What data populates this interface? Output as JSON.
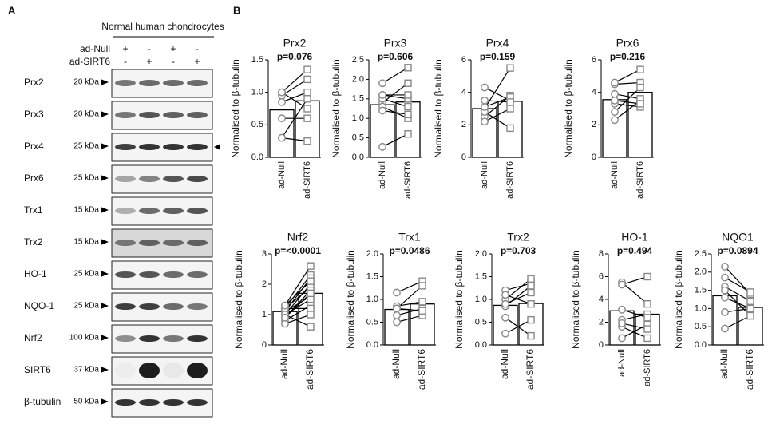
{
  "panel_a": {
    "label": "A",
    "title": "Normal human chondrocytes",
    "conditions": [
      {
        "name": "ad-Null",
        "signs": [
          "+",
          "-",
          "+",
          "-"
        ]
      },
      {
        "name": "ad-SIRT6",
        "signs": [
          "-",
          "+",
          "-",
          "+"
        ]
      }
    ],
    "blots": [
      {
        "name": "Prx2",
        "kda": "20 kDa"
      },
      {
        "name": "Prx3",
        "kda": "20 kDa"
      },
      {
        "name": "Prx4",
        "kda": "25 kDa"
      },
      {
        "name": "Prx6",
        "kda": "25 kDa"
      },
      {
        "name": "Trx1",
        "kda": "15 kDa"
      },
      {
        "name": "Trx2",
        "kda": "15 kDa"
      },
      {
        "name": "HO-1",
        "kda": "25 kDa"
      },
      {
        "name": "NQO-1",
        "kda": "25 kDa"
      },
      {
        "name": "Nrf2",
        "kda": "100 kDa"
      },
      {
        "name": "SIRT6",
        "kda": "37 kDa"
      },
      {
        "name": "β-tubulin",
        "kda": "50 kDa"
      }
    ]
  },
  "panel_b_label": "B",
  "chart_data": [
    {
      "type": "paired-bar",
      "title": "Prx2",
      "annotation": "p=0.076",
      "ylabel": "Normalised to β-tubulin",
      "categories": [
        "ad-Null",
        "ad-SIRT6"
      ],
      "values": [
        0.73,
        0.87
      ],
      "pairs": [
        [
          0.3,
          0.25
        ],
        [
          1.0,
          1.35
        ],
        [
          0.95,
          1.2
        ],
        [
          0.85,
          1.0
        ],
        [
          0.6,
          0.6
        ],
        [
          1.0,
          0.75
        ],
        [
          0.3,
          0.9
        ]
      ],
      "ylim": [
        0,
        1.5
      ],
      "yticks": [
        {
          "value": 0,
          "label": "0.0"
        },
        0.5,
        {
          "value": 1,
          "label": "1.0"
        },
        1.5
      ]
    },
    {
      "type": "paired-bar",
      "title": "Prx3",
      "annotation": "p=0.606",
      "ylabel": "Normalised to β-tubulin",
      "categories": [
        "ad-Null",
        "ad-SIRT6"
      ],
      "values": [
        1.35,
        1.42
      ],
      "pairs": [
        [
          0.27,
          0.6
        ],
        [
          1.9,
          2.3
        ],
        [
          1.6,
          1.5
        ],
        [
          1.4,
          1.9
        ],
        [
          1.3,
          1.0
        ],
        [
          1.5,
          1.3
        ],
        [
          1.6,
          1.6
        ],
        [
          1.2,
          1.1
        ]
      ],
      "ylim": [
        0,
        2.5
      ],
      "yticks": [
        {
          "value": 0,
          "label": "0.0"
        },
        0.5,
        {
          "value": 1,
          "label": "1.0"
        },
        1.5,
        {
          "value": 2,
          "label": "2.0"
        },
        2.5
      ]
    },
    {
      "type": "paired-bar",
      "title": "Prx4",
      "annotation": "p=0.159",
      "ylabel": "Normalised to β-tubulin",
      "categories": [
        "ad-Null",
        "ad-SIRT6"
      ],
      "values": [
        3.0,
        3.45
      ],
      "pairs": [
        [
          4.3,
          3.5
        ],
        [
          3.0,
          5.5
        ],
        [
          2.5,
          3.8
        ],
        [
          2.2,
          3.0
        ],
        [
          2.8,
          1.8
        ],
        [
          3.1,
          3.7
        ],
        [
          3.5,
          3.4
        ]
      ],
      "ylim": [
        0,
        6
      ],
      "yticks": [
        0,
        2,
        4,
        6
      ]
    },
    {
      "type": "paired-bar",
      "title": "Prx6",
      "annotation": "p=0.216",
      "ylabel": "Normalised to β-tubulin",
      "categories": [
        "ad-Null",
        "ad-SIRT6"
      ],
      "values": [
        3.55,
        4.0
      ],
      "pairs": [
        [
          2.3,
          3.5
        ],
        [
          4.5,
          4.6
        ],
        [
          4.6,
          5.4
        ],
        [
          3.3,
          3.1
        ],
        [
          2.8,
          4.3
        ],
        [
          3.9,
          3.6
        ],
        [
          3.5,
          3.3
        ]
      ],
      "ylim": [
        0,
        6
      ],
      "yticks": [
        0,
        2,
        4,
        6
      ]
    },
    {
      "type": "paired-bar",
      "title": "Nrf2",
      "annotation": "p=<0.0001",
      "ylabel": "Normalised to β-tubulin",
      "categories": [
        "ad-Null",
        "ad-SIRT6"
      ],
      "values": [
        1.1,
        1.7
      ],
      "pairs": [
        [
          1.3,
          2.6
        ],
        [
          1.2,
          2.3
        ],
        [
          1.1,
          2.2
        ],
        [
          1.0,
          2.0
        ],
        [
          1.2,
          1.9
        ],
        [
          0.9,
          1.8
        ],
        [
          1.1,
          1.6
        ],
        [
          1.0,
          1.5
        ],
        [
          0.8,
          1.3
        ],
        [
          1.2,
          1.2
        ],
        [
          0.7,
          1.0
        ],
        [
          1.0,
          0.6
        ],
        [
          1.3,
          2.1
        ],
        [
          0.9,
          1.7
        ]
      ],
      "ylim": [
        0,
        3
      ],
      "yticks": [
        0,
        1,
        2,
        3
      ]
    },
    {
      "type": "paired-bar",
      "title": "Trx1",
      "annotation": "p=0.0486",
      "ylabel": "Normalised to β-tubulin",
      "categories": [
        "ad-Null",
        "ad-SIRT6"
      ],
      "values": [
        0.78,
        0.9
      ],
      "pairs": [
        [
          1.15,
          1.4
        ],
        [
          0.85,
          0.95
        ],
        [
          0.65,
          0.8
        ],
        [
          0.5,
          0.65
        ],
        [
          0.8,
          1.3
        ],
        [
          0.8,
          0.75
        ]
      ],
      "ylim": [
        0,
        2
      ],
      "yticks": [
        {
          "value": 0,
          "label": "0.0"
        },
        0.5,
        {
          "value": 1,
          "label": "1.0"
        },
        1.5,
        {
          "value": 2,
          "label": "2.0"
        }
      ]
    },
    {
      "type": "paired-bar",
      "title": "Trx2",
      "annotation": "p=0.703",
      "ylabel": "Normalised to β-tubulin",
      "categories": [
        "ad-Null",
        "ad-SIRT6"
      ],
      "values": [
        0.87,
        0.91
      ],
      "pairs": [
        [
          1.2,
          1.35
        ],
        [
          1.0,
          1.45
        ],
        [
          0.85,
          1.3
        ],
        [
          0.6,
          0.2
        ],
        [
          0.25,
          0.55
        ],
        [
          1.1,
          0.9
        ],
        [
          0.9,
          1.15
        ]
      ],
      "ylim": [
        0,
        2
      ],
      "yticks": [
        {
          "value": 0,
          "label": "0.0"
        },
        0.5,
        {
          "value": 1,
          "label": "1.0"
        },
        1.5,
        {
          "value": 2,
          "label": "2.0"
        }
      ]
    },
    {
      "type": "paired-bar",
      "title": "HO-1",
      "annotation": "p=0.494",
      "ylabel": "Normalised to β-tubulin",
      "categories": [
        "ad-Null",
        "ad-SIRT6"
      ],
      "values": [
        3.0,
        2.7
      ],
      "pairs": [
        [
          5.5,
          3.6
        ],
        [
          5.3,
          6.0
        ],
        [
          2.2,
          2.7
        ],
        [
          1.6,
          0.6
        ],
        [
          0.6,
          1.8
        ],
        [
          3.1,
          2.4
        ],
        [
          1.9,
          1.4
        ]
      ],
      "ylim": [
        0,
        8
      ],
      "yticks": [
        0,
        2,
        4,
        6,
        8
      ]
    },
    {
      "type": "paired-bar",
      "title": "NQO1",
      "annotation": "p=0.0894",
      "ylabel": "Normalised to β-tubulin",
      "categories": [
        "ad-Null",
        "ad-SIRT6"
      ],
      "values": [
        1.35,
        1.03
      ],
      "pairs": [
        [
          2.15,
          1.4
        ],
        [
          1.85,
          1.45
        ],
        [
          1.6,
          1.2
        ],
        [
          1.5,
          0.8
        ],
        [
          1.3,
          1.0
        ],
        [
          0.9,
          1.0
        ],
        [
          0.45,
          0.8
        ]
      ],
      "ylim": [
        0,
        2.5
      ],
      "yticks": [
        {
          "value": 0,
          "label": "0.0"
        },
        0.5,
        {
          "value": 1,
          "label": "1.0"
        },
        1.5,
        {
          "value": 2,
          "label": "2.0"
        },
        2.5
      ]
    }
  ]
}
